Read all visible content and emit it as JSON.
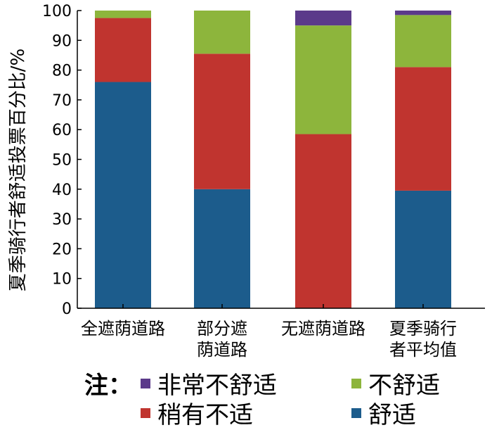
{
  "chart_data": {
    "type": "bar",
    "stacked": true,
    "ylabel": "夏季骑行者舒适投票百分比/%",
    "ylim": [
      0,
      100
    ],
    "yticks": [
      0,
      10,
      20,
      30,
      40,
      50,
      60,
      70,
      80,
      90,
      100
    ],
    "categories": [
      [
        "全遮荫道路"
      ],
      [
        "部分遮",
        "荫道路"
      ],
      [
        "无遮荫道路"
      ],
      [
        "夏季骑行",
        "者平均值"
      ]
    ],
    "series": [
      {
        "name": "舒适",
        "color": "#1c5c8c",
        "values": [
          76,
          40,
          0,
          39.5
        ]
      },
      {
        "name": "稍有不适",
        "color": "#c0342f",
        "values": [
          21.5,
          45.5,
          58.5,
          41.5
        ]
      },
      {
        "name": "不舒适",
        "color": "#8db53c",
        "values": [
          2.5,
          14.5,
          36.5,
          17.5
        ]
      },
      {
        "name": "非常不舒适",
        "color": "#5b3a8a",
        "values": [
          0,
          0,
          5,
          1.5
        ]
      }
    ],
    "legend_note": "注：",
    "legend_order": [
      "非常不舒适",
      "不舒适",
      "稍有不适",
      "舒适"
    ],
    "grid": false,
    "legend_position": "bottom"
  }
}
